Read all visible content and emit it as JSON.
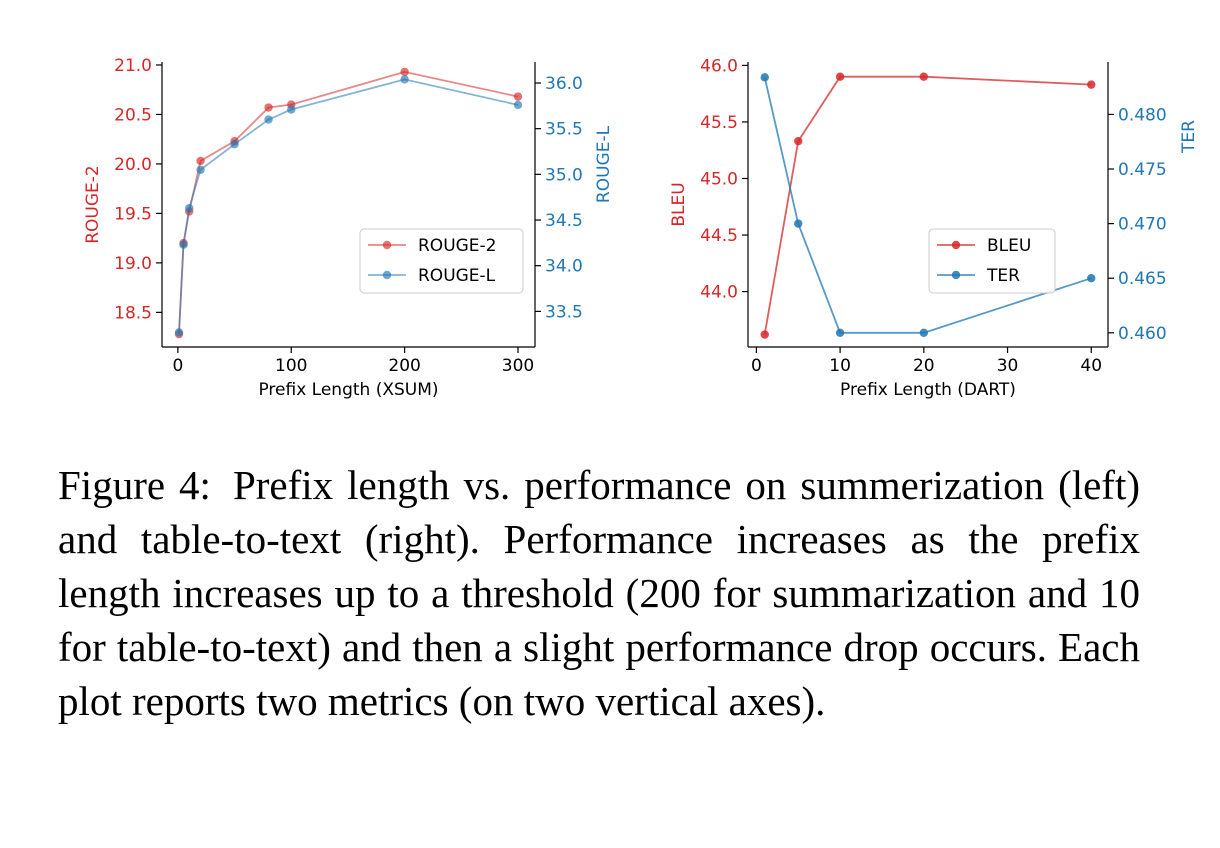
{
  "colors": {
    "red": "#d62728",
    "blue": "#1f77b4"
  },
  "chart_data": [
    {
      "type": "line",
      "x": [
        1,
        5,
        10,
        20,
        50,
        80,
        100,
        200,
        300
      ],
      "xlabel": "Prefix Length (XSUM)",
      "xlim": [
        -14,
        315
      ],
      "xticks": [
        0,
        100,
        200,
        300
      ],
      "series": [
        {
          "name": "ROUGE-2",
          "axis": "left",
          "color": "#d62728",
          "values": [
            18.28,
            19.2,
            19.52,
            20.03,
            20.23,
            20.57,
            20.6,
            20.93,
            20.68
          ]
        },
        {
          "name": "ROUGE-L",
          "axis": "right",
          "color": "#1f77b4",
          "values": [
            33.27,
            34.23,
            34.63,
            35.05,
            35.33,
            35.6,
            35.71,
            36.04,
            35.76
          ]
        }
      ],
      "ylabel_left": "ROUGE-2",
      "ylim_left": [
        18.15,
        21.03
      ],
      "yticks_left": [
        "21.0",
        "20.5",
        "20.0",
        "19.5",
        "19.0",
        "18.5"
      ],
      "ylabel_right": "ROUGE-L",
      "ylim_right": [
        33.11,
        36.23
      ],
      "yticks_right": [
        "36.0",
        "35.5",
        "35.0",
        "34.5",
        "34.0",
        "33.5"
      ],
      "legend": "center-right",
      "grid": false
    },
    {
      "type": "line",
      "x": [
        1,
        5,
        10,
        20,
        40
      ],
      "xlabel": "Prefix Length (DART)",
      "xlim": [
        -1,
        42
      ],
      "xticks": [
        0,
        10,
        20,
        30,
        40
      ],
      "series": [
        {
          "name": "BLEU",
          "axis": "left",
          "color": "#d62728",
          "values": [
            43.62,
            45.33,
            45.9,
            45.9,
            45.83
          ]
        },
        {
          "name": "TER",
          "axis": "right",
          "color": "#1f77b4",
          "values": [
            0.4834,
            0.47,
            0.46,
            0.46,
            0.465
          ]
        }
      ],
      "ylabel_left": "BLEU",
      "ylim_left": [
        43.51,
        46.03
      ],
      "yticks_left": [
        "46.0",
        "45.5",
        "45.0",
        "44.5",
        "44.0"
      ],
      "ylabel_right": "TER",
      "ylim_right": [
        0.4587,
        0.4848
      ],
      "yticks_right": [
        "0.480",
        "0.475",
        "0.470",
        "0.465",
        "0.460"
      ],
      "legend": "center-right",
      "grid": false
    }
  ],
  "caption": {
    "label": "Figure 4:",
    "text": "Prefix length vs. performance on summer­ization (left) and table-to-text (right). Performance in­creases as the prefix length increases up to a threshold (200 for summarization and 10 for table-to-text) and then a slight performance drop occurs. Each plot re­ports two metrics (on two vertical axes)."
  }
}
